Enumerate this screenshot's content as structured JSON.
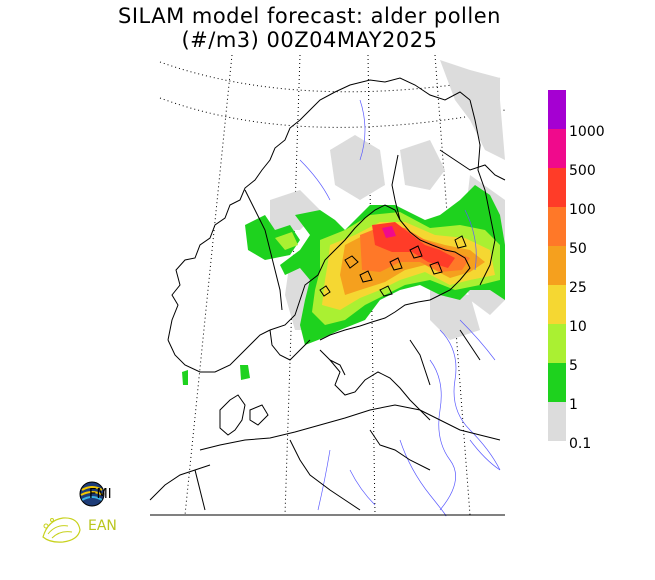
{
  "header": {
    "title_line1": "SILAM model forecast: alder pollen",
    "title_line2": "(#/m3) 00Z04MAY2025"
  },
  "legend": {
    "labels": [
      "1000",
      "500",
      "100",
      "50",
      "25",
      "10",
      "5",
      "1",
      "0.1"
    ],
    "colors": [
      "#a500d2",
      "#f00a8c",
      "#ff3c28",
      "#ff7828",
      "#f5a01e",
      "#f5d732",
      "#aaf032",
      "#1ed21e",
      "#dcdcdc"
    ]
  },
  "logos": {
    "fmi": "FMI",
    "ean": "EAN"
  }
}
